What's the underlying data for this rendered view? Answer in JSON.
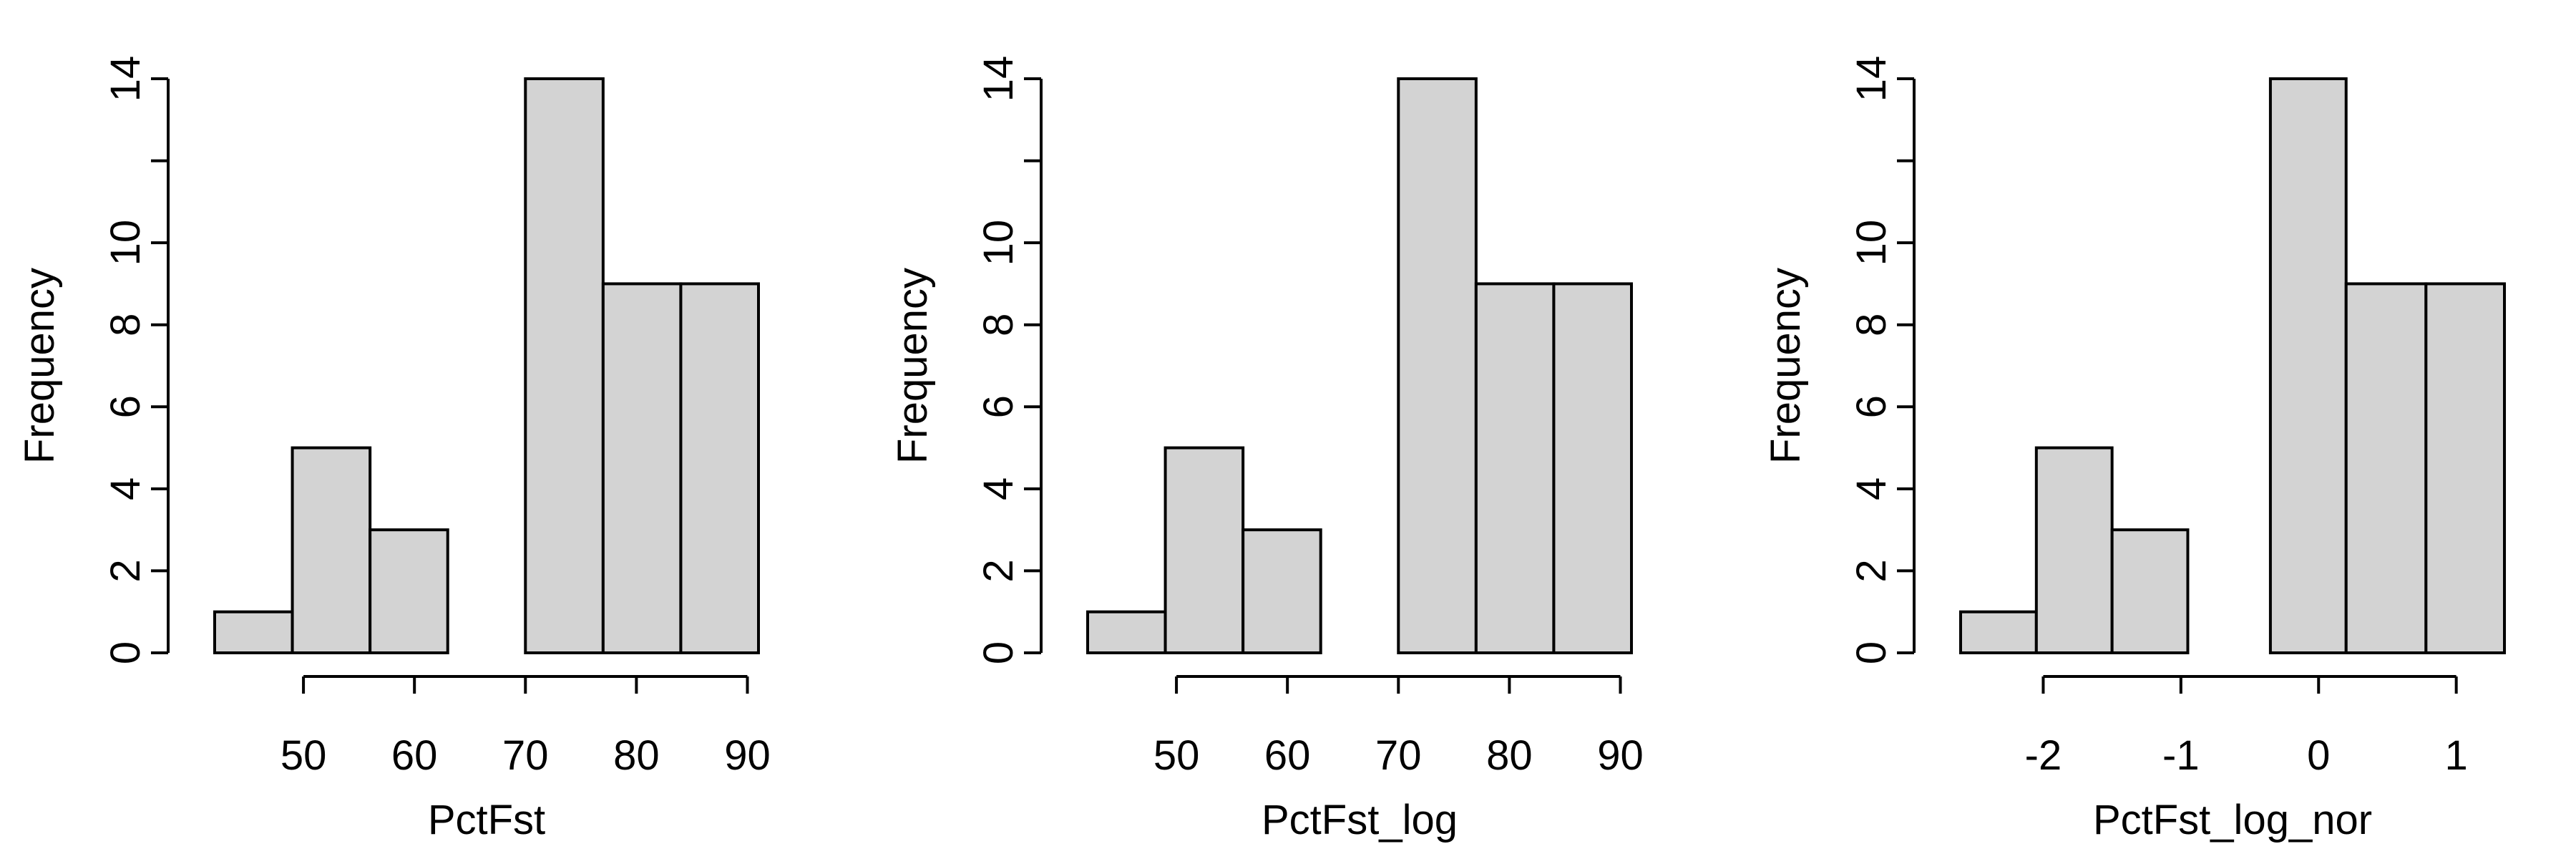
{
  "chart_data": [
    {
      "type": "bar",
      "title": "",
      "xlabel": "PctFst",
      "ylabel": "Frequency",
      "bins": [
        [
          42,
          49
        ],
        [
          49,
          56
        ],
        [
          56,
          63
        ],
        [
          63,
          70
        ],
        [
          70,
          77
        ],
        [
          77,
          84
        ],
        [
          84,
          91
        ]
      ],
      "values": [
        1,
        5,
        3,
        0,
        14,
        9,
        9
      ],
      "xticks": [
        50,
        60,
        70,
        80,
        90
      ],
      "xtick_labels": [
        "50",
        "60",
        "70",
        "80",
        "90"
      ],
      "xlim": [
        42,
        91
      ],
      "yticks": [
        0,
        2,
        4,
        6,
        8,
        10,
        14
      ],
      "ytick_labels": [
        "0",
        "2",
        "4",
        "6",
        "8",
        "10",
        "14"
      ],
      "ylim": [
        0,
        14
      ],
      "grid": false,
      "bar_color": "#D3D3D3",
      "edge_color": "#000000"
    },
    {
      "type": "bar",
      "title": "",
      "xlabel": "PctFst_log",
      "ylabel": "Frequency",
      "bins": [
        [
          42,
          49
        ],
        [
          49,
          56
        ],
        [
          56,
          63
        ],
        [
          63,
          70
        ],
        [
          70,
          77
        ],
        [
          77,
          84
        ],
        [
          84,
          91
        ]
      ],
      "values": [
        1,
        5,
        3,
        0,
        14,
        9,
        9
      ],
      "xticks": [
        50,
        60,
        70,
        80,
        90
      ],
      "xtick_labels": [
        "50",
        "60",
        "70",
        "80",
        "90"
      ],
      "xlim": [
        42,
        91
      ],
      "yticks": [
        0,
        2,
        4,
        6,
        8,
        10,
        14
      ],
      "ytick_labels": [
        "0",
        "2",
        "4",
        "6",
        "8",
        "10",
        "14"
      ],
      "ylim": [
        0,
        14
      ],
      "grid": false,
      "bar_color": "#D3D3D3",
      "edge_color": "#000000"
    },
    {
      "type": "bar",
      "title": "",
      "xlabel": "PctFst_log_nor",
      "ylabel": "Frequency",
      "bins": [
        [
          -2.6,
          -2.05
        ],
        [
          -2.05,
          -1.5
        ],
        [
          -1.5,
          -0.95
        ],
        [
          -0.95,
          -0.35
        ],
        [
          -0.35,
          0.2
        ],
        [
          0.2,
          0.78
        ],
        [
          0.78,
          1.35
        ]
      ],
      "values": [
        1,
        5,
        3,
        0,
        14,
        9,
        9
      ],
      "xticks": [
        -2,
        -1,
        0,
        1
      ],
      "xtick_labels": [
        "-2",
        "-1",
        "0",
        "1"
      ],
      "xlim": [
        -2.6,
        1.35
      ],
      "yticks": [
        0,
        2,
        4,
        6,
        8,
        10,
        14
      ],
      "ytick_labels": [
        "0",
        "2",
        "4",
        "6",
        "8",
        "10",
        "14"
      ],
      "ylim": [
        0,
        14
      ],
      "grid": false,
      "bar_color": "#D3D3D3",
      "edge_color": "#000000"
    }
  ]
}
